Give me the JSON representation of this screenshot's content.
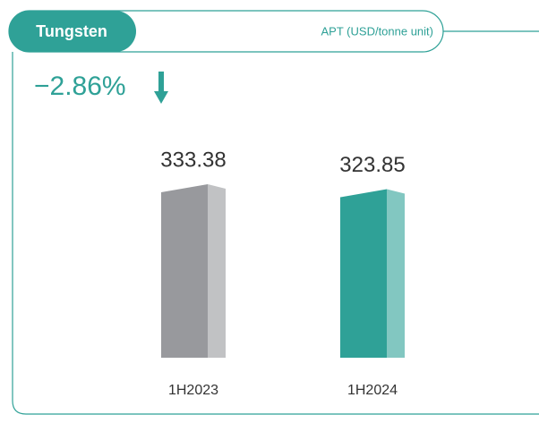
{
  "chart_data": {
    "type": "bar",
    "title": "Tungsten",
    "subtitle": "APT (USD/tonne unit)",
    "annotation": "−2.86%",
    "categories": [
      "1H2023",
      "1H2024"
    ],
    "values": [
      333.38,
      323.85
    ],
    "colors": [
      "#98999d",
      "#2fa197"
    ]
  }
}
